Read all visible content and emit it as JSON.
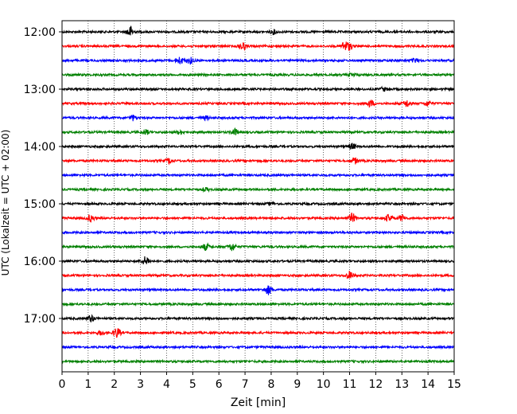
{
  "chart_data": {
    "type": "line",
    "title": "",
    "xlabel": "Zeit  [min]",
    "ylabel": "UTC (Lokalzeit = UTC + 02:00)",
    "xlim": [
      0,
      15
    ],
    "x_ticks": [
      "0",
      "1",
      "2",
      "3",
      "4",
      "5",
      "6",
      "7",
      "8",
      "9",
      "10",
      "11",
      "12",
      "13",
      "14",
      "15"
    ],
    "y_ticks": [
      "12:00",
      "13:00",
      "14:00",
      "15:00",
      "16:00",
      "17:00"
    ],
    "grid": "vertical dotted lines at each minute",
    "trace_colors": [
      "#000000",
      "#ff0000",
      "#0000ff",
      "#008000"
    ],
    "traces": [
      {
        "start": "12:00",
        "color": "#000000",
        "events": [
          {
            "t": 2.6,
            "amp": 1.0
          },
          {
            "t": 8.1,
            "amp": 0.35
          }
        ]
      },
      {
        "start": "12:15",
        "color": "#ff0000",
        "events": [
          {
            "t": 6.9,
            "amp": 0.7
          },
          {
            "t": 10.8,
            "amp": 0.75
          },
          {
            "t": 11.0,
            "amp": 0.55
          }
        ]
      },
      {
        "start": "12:30",
        "color": "#0000ff",
        "events": [
          {
            "t": 4.5,
            "amp": 0.6
          },
          {
            "t": 4.9,
            "amp": 0.55
          },
          {
            "t": 13.5,
            "amp": 0.35
          }
        ]
      },
      {
        "start": "12:45",
        "color": "#008000",
        "events": [
          {
            "t": 11.1,
            "amp": 0.25
          }
        ]
      },
      {
        "start": "13:00",
        "color": "#000000",
        "events": [
          {
            "t": 12.3,
            "amp": 0.3
          }
        ]
      },
      {
        "start": "13:15",
        "color": "#ff0000",
        "events": [
          {
            "t": 11.8,
            "amp": 0.55
          },
          {
            "t": 13.2,
            "amp": 0.6
          },
          {
            "t": 14.0,
            "amp": 0.45
          }
        ]
      },
      {
        "start": "13:30",
        "color": "#0000ff",
        "events": [
          {
            "t": 2.7,
            "amp": 0.45
          },
          {
            "t": 5.5,
            "amp": 0.3
          }
        ]
      },
      {
        "start": "13:45",
        "color": "#008000",
        "events": [
          {
            "t": 3.2,
            "amp": 0.4
          },
          {
            "t": 4.5,
            "amp": 0.3
          },
          {
            "t": 6.6,
            "amp": 0.55
          }
        ]
      },
      {
        "start": "14:00",
        "color": "#000000",
        "events": [
          {
            "t": 11.1,
            "amp": 0.5
          }
        ]
      },
      {
        "start": "14:15",
        "color": "#ff0000",
        "events": [
          {
            "t": 4.1,
            "amp": 0.45
          },
          {
            "t": 11.2,
            "amp": 0.5
          }
        ]
      },
      {
        "start": "14:30",
        "color": "#0000ff",
        "events": []
      },
      {
        "start": "14:45",
        "color": "#008000",
        "events": [
          {
            "t": 5.5,
            "amp": 0.25
          }
        ]
      },
      {
        "start": "15:00",
        "color": "#000000",
        "events": [
          {
            "t": 8.0,
            "amp": 0.25
          }
        ]
      },
      {
        "start": "15:15",
        "color": "#ff0000",
        "events": [
          {
            "t": 1.1,
            "amp": 0.6
          },
          {
            "t": 11.1,
            "amp": 0.75
          },
          {
            "t": 12.5,
            "amp": 0.6
          },
          {
            "t": 13.0,
            "amp": 0.5
          }
        ]
      },
      {
        "start": "15:30",
        "color": "#0000ff",
        "events": []
      },
      {
        "start": "15:45",
        "color": "#008000",
        "events": [
          {
            "t": 5.5,
            "amp": 0.55
          },
          {
            "t": 6.5,
            "amp": 0.7
          }
        ]
      },
      {
        "start": "16:00",
        "color": "#000000",
        "events": [
          {
            "t": 3.2,
            "amp": 0.75
          }
        ]
      },
      {
        "start": "16:15",
        "color": "#ff0000",
        "events": [
          {
            "t": 11.0,
            "amp": 0.7
          }
        ]
      },
      {
        "start": "16:30",
        "color": "#0000ff",
        "events": [
          {
            "t": 7.9,
            "amp": 0.8
          }
        ]
      },
      {
        "start": "16:45",
        "color": "#008000",
        "events": []
      },
      {
        "start": "17:00",
        "color": "#000000",
        "events": [
          {
            "t": 1.1,
            "amp": 0.6
          }
        ]
      },
      {
        "start": "17:15",
        "color": "#ff0000",
        "events": [
          {
            "t": 1.5,
            "amp": 0.4
          },
          {
            "t": 2.1,
            "amp": 0.85
          }
        ]
      },
      {
        "start": "17:30",
        "color": "#0000ff",
        "events": []
      },
      {
        "start": "17:45",
        "color": "#008000",
        "events": []
      }
    ]
  }
}
